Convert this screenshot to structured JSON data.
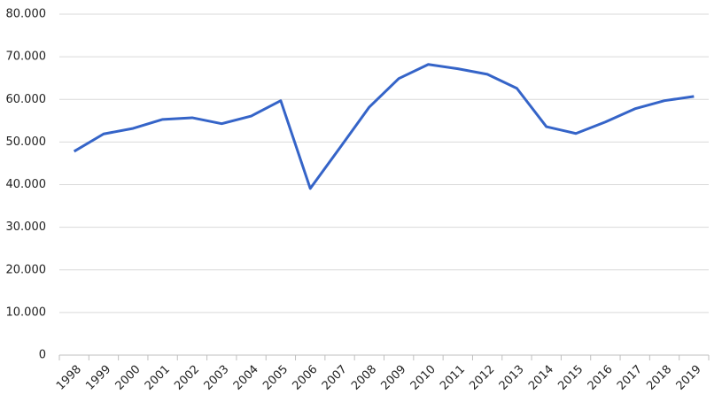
{
  "chart_data": {
    "type": "line",
    "categories": [
      "1998",
      "1999",
      "2000",
      "2001",
      "2002",
      "2003",
      "2004",
      "2005",
      "2006",
      "2007",
      "2008",
      "2009",
      "2010",
      "2011",
      "2012",
      "2013",
      "2014",
      "2015",
      "2016",
      "2017",
      "2018",
      "2019"
    ],
    "series": [
      {
        "color": "#3564c8",
        "values": [
          47800,
          51900,
          53200,
          55300,
          55700,
          54300,
          56100,
          59700,
          39100,
          48600,
          58200,
          64900,
          68200,
          67200,
          65900,
          62600,
          53600,
          52000,
          54700,
          57800,
          59700,
          60700
        ]
      }
    ],
    "ylim": [
      0,
      80000
    ],
    "yticks": [
      0,
      {
        "value": 10000,
        "label": "10.000"
      },
      {
        "value": 20000,
        "label": "20.000"
      },
      {
        "value": 30000,
        "label": "30.000"
      },
      {
        "value": 40000,
        "label": "40.000"
      },
      {
        "value": 50000,
        "label": "50.000"
      },
      {
        "value": 60000,
        "label": "60.000"
      },
      {
        "value": 70000,
        "label": "70.000"
      },
      {
        "value": 80000,
        "label": "80.000"
      }
    ],
    "grid": true
  }
}
